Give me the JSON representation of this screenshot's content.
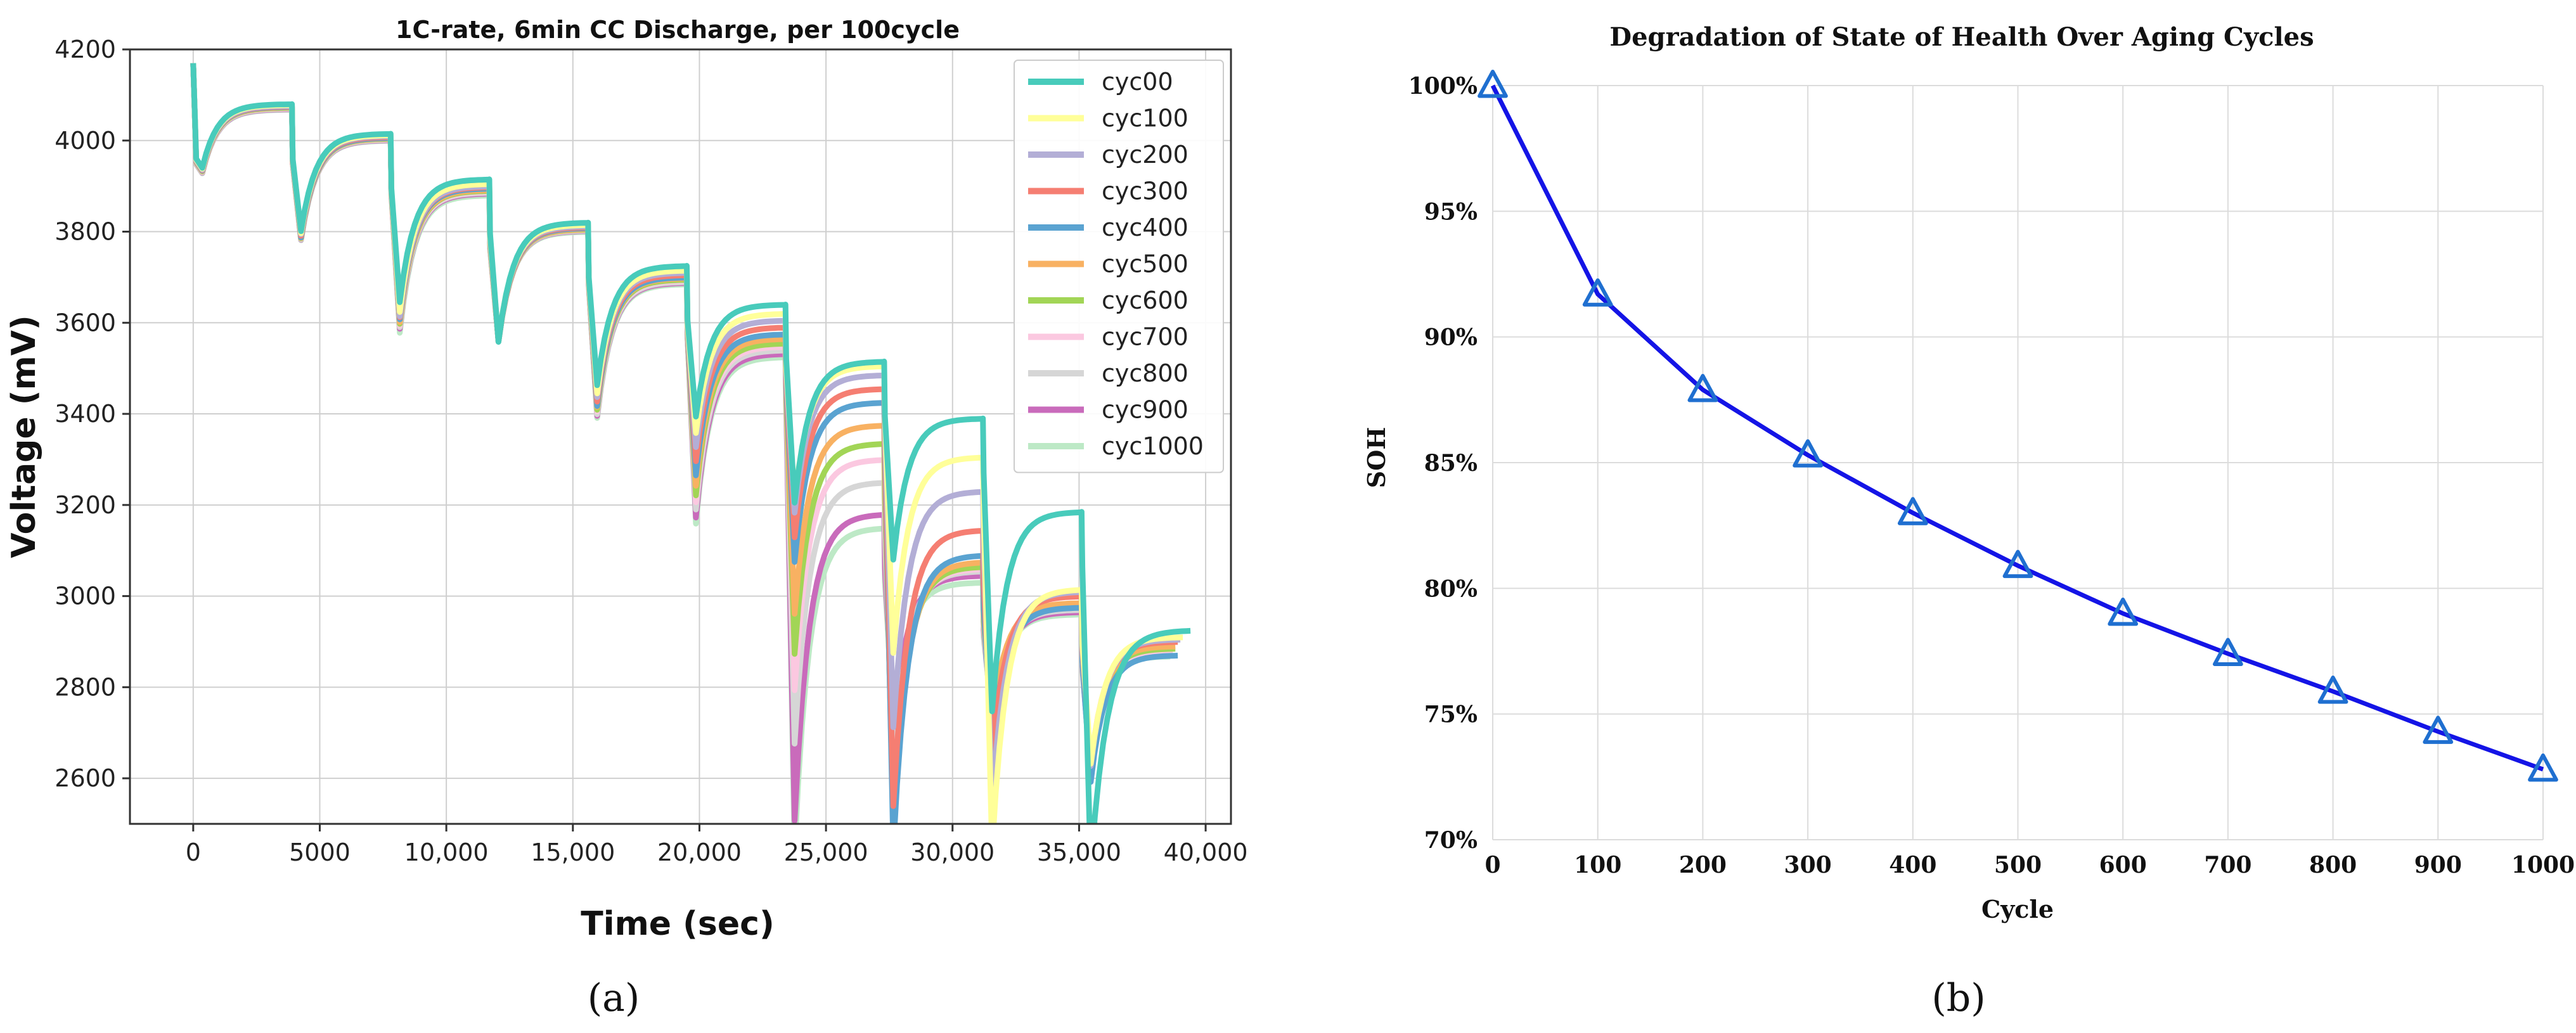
{
  "panel_labels": {
    "a": "(a)",
    "b": "(b)"
  },
  "chart_data": [
    {
      "type": "line",
      "title": "1C-rate, 6min CC Discharge, per 100cycle",
      "xlabel": "Time (sec)",
      "ylabel": "Voltage (mV)",
      "xlim": [
        -2500,
        41000
      ],
      "ylim": [
        2500,
        4200
      ],
      "xticks": [
        0,
        5000,
        10000,
        15000,
        20000,
        25000,
        30000,
        35000,
        40000
      ],
      "xtick_labels": [
        "0",
        "5000",
        "10,000",
        "15,000",
        "20,000",
        "25,000",
        "30,000",
        "35,000",
        "40,000"
      ],
      "yticks": [
        2600,
        2800,
        3000,
        3200,
        3400,
        3600,
        3800,
        4000,
        4200
      ],
      "ytick_labels": [
        "2600",
        "2800",
        "3000",
        "3200",
        "3400",
        "3600",
        "3800",
        "4000",
        "4200"
      ],
      "grid": true,
      "legend_position": "top-right",
      "step_period_sec": 3900,
      "discharge_sec": 360,
      "start_voltage": 4170,
      "series": [
        {
          "name": "cyc00",
          "color": "#48cbbb",
          "plateaus": [
            4080,
            4015,
            3915,
            3820,
            3725,
            3640,
            3515,
            3390,
            3185,
            2925
          ],
          "tail_sec": 39400
        },
        {
          "name": "cyc100",
          "color": "#ffff99",
          "plateaus": [
            4078,
            4012,
            3905,
            3815,
            3715,
            3620,
            3505,
            3305,
            3015,
            2910
          ],
          "tail_sec": 39100
        },
        {
          "name": "cyc200",
          "color": "#b3aed6",
          "plateaus": [
            4076,
            4010,
            3900,
            3812,
            3710,
            3605,
            3485,
            3230,
            3010,
            2905
          ],
          "tail_sec": 39000
        },
        {
          "name": "cyc300",
          "color": "#f57e72",
          "plateaus": [
            4075,
            4008,
            3898,
            3810,
            3705,
            3590,
            3455,
            3145,
            3000,
            2900
          ],
          "tail_sec": 38900
        },
        {
          "name": "cyc400",
          "color": "#5aa3d1",
          "plateaus": [
            4074,
            4006,
            3895,
            3808,
            3700,
            3575,
            3425,
            3090,
            2975,
            2870
          ],
          "tail_sec": 38900
        },
        {
          "name": "cyc500",
          "color": "#f8b162",
          "plateaus": [
            4073,
            4005,
            3892,
            3806,
            3698,
            3565,
            3375,
            3075,
            2985,
            2890
          ],
          "tail_sec": 38800
        },
        {
          "name": "cyc600",
          "color": "#a2d556",
          "plateaus": [
            4072,
            4004,
            3890,
            3805,
            3695,
            3555,
            3335,
            3065,
            2980,
            2885
          ],
          "tail_sec": 38800
        },
        {
          "name": "cyc700",
          "color": "#fbc8e0",
          "plateaus": [
            4071,
            4003,
            3888,
            3804,
            3693,
            3548,
            3300,
            3060,
            2975,
            2880
          ],
          "tail_sec": 38700
        },
        {
          "name": "cyc800",
          "color": "#d6d6d6",
          "plateaus": [
            4070,
            4002,
            3886,
            3803,
            3690,
            3540,
            3250,
            3055,
            2970,
            2875
          ],
          "tail_sec": 38700
        },
        {
          "name": "cyc900",
          "color": "#c96bbb",
          "plateaus": [
            4069,
            4001,
            3884,
            3802,
            3688,
            3532,
            3180,
            3045,
            2965,
            2870
          ],
          "tail_sec": 38600
        },
        {
          "name": "cyc1000",
          "color": "#bde9c6",
          "plateaus": [
            4068,
            4000,
            3880,
            3800,
            3685,
            3525,
            3150,
            3030,
            2960,
            2868
          ],
          "tail_sec": 38600
        }
      ]
    },
    {
      "type": "line",
      "title": "Degradation of State of Health Over Aging Cycles",
      "xlabel": "Cycle",
      "ylabel": "SOH",
      "xlim": [
        0,
        1000
      ],
      "ylim": [
        70,
        100
      ],
      "xticks": [
        0,
        100,
        200,
        300,
        400,
        500,
        600,
        700,
        800,
        900,
        1000
      ],
      "yticks": [
        70,
        75,
        80,
        85,
        90,
        95,
        100
      ],
      "ytick_labels": [
        "70%",
        "75%",
        "80%",
        "85%",
        "90%",
        "95%",
        "100%"
      ],
      "grid": true,
      "line_color": "#1414e6",
      "marker": "triangle",
      "marker_color": "#1f6fd0",
      "series": [
        {
          "name": "SOH",
          "x": [
            0,
            100,
            200,
            300,
            400,
            500,
            600,
            700,
            800,
            900,
            1000
          ],
          "y": [
            100,
            91.7,
            87.9,
            85.3,
            83.0,
            80.9,
            79.0,
            77.4,
            75.9,
            74.3,
            72.8
          ]
        }
      ]
    }
  ]
}
